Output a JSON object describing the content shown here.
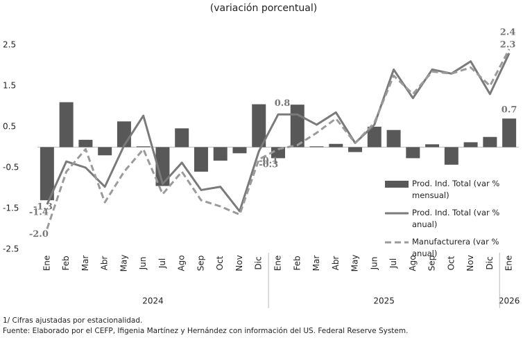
{
  "chart_data": {
    "type": "bar_line",
    "subtitle": "(variación porcentual)",
    "categories": [
      "Ene",
      "Feb",
      "Mar",
      "Abr",
      "May",
      "Jun",
      "Jul",
      "Ago",
      "Sep",
      "Oct",
      "Nov",
      "Dic",
      "Ene",
      "Feb",
      "Mar",
      "Abr",
      "May",
      "Jun",
      "Jul",
      "Ago",
      "Sep",
      "Oct",
      "Nov",
      "Dic",
      "Ene"
    ],
    "year_groups": [
      {
        "label": "2024",
        "start": 0,
        "end": 11
      },
      {
        "label": "2025",
        "start": 12,
        "end": 23
      },
      {
        "label": "2026",
        "start": 24,
        "end": 24
      }
    ],
    "series": [
      {
        "name": "Prod. Ind. Total (var % mensual)",
        "type": "bar",
        "color": "#585858",
        "values": [
          -1.3,
          1.1,
          0.18,
          -0.2,
          0.63,
          0.02,
          -0.95,
          0.46,
          -0.6,
          -0.33,
          -0.15,
          1.05,
          -0.27,
          1.04,
          0.02,
          0.08,
          -0.12,
          0.5,
          0.42,
          -0.27,
          0.07,
          -0.43,
          0.12,
          0.25,
          0.7
        ],
        "value_labels": [
          "-1.3",
          null,
          null,
          null,
          null,
          null,
          null,
          null,
          null,
          null,
          null,
          null,
          null,
          null,
          null,
          null,
          null,
          null,
          null,
          null,
          null,
          null,
          null,
          null,
          "0.7"
        ]
      },
      {
        "name": "Prod. Ind. Total (var % anual)",
        "type": "line",
        "color": "#7a7a7a",
        "values": [
          -1.4,
          -0.35,
          -0.5,
          -0.97,
          0.04,
          0.77,
          -0.9,
          -0.38,
          -1.05,
          -0.97,
          -1.57,
          -0.1,
          0.8,
          0.8,
          0.55,
          0.85,
          0.1,
          0.55,
          1.9,
          1.2,
          1.9,
          1.8,
          2.1,
          1.3,
          2.3
        ],
        "value_labels": [
          "-1.4",
          null,
          null,
          null,
          null,
          null,
          null,
          null,
          null,
          null,
          null,
          "-0.1",
          "0.8",
          null,
          null,
          null,
          null,
          null,
          null,
          null,
          null,
          null,
          null,
          null,
          "2.3"
        ]
      },
      {
        "name": "Manufacturera (var % anual)",
        "type": "dashed",
        "color": "#9a9a9a",
        "values": [
          -2.0,
          -0.6,
          -0.05,
          -1.35,
          -0.6,
          -0.05,
          -1.15,
          -0.6,
          -1.3,
          -1.45,
          -1.65,
          -0.3,
          -0.05,
          0.05,
          0.35,
          0.7,
          0.1,
          0.6,
          1.75,
          1.3,
          1.85,
          1.8,
          1.95,
          1.5,
          2.4
        ],
        "value_labels": [
          "-2.0",
          null,
          null,
          null,
          null,
          null,
          null,
          null,
          null,
          null,
          null,
          "-0.3",
          null,
          null,
          null,
          null,
          null,
          null,
          null,
          null,
          null,
          null,
          null,
          null,
          "2.4"
        ]
      }
    ],
    "ylim": [
      -2.5,
      2.5
    ],
    "yticks": [
      -2.5,
      -1.5,
      -0.5,
      0.5,
      1.5,
      2.5
    ],
    "notes": [
      "1/ Cifras ajustadas por estacionalidad.",
      "Fuente: Elaborado por el CEFP, Ifigenia Martínez y Hernández con información del US. Federal Reserve System."
    ]
  }
}
